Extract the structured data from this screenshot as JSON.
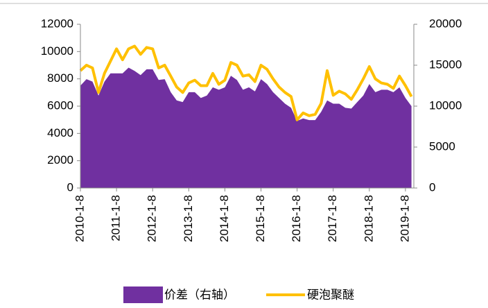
{
  "chart_data": {
    "type": "line",
    "categories": [
      "2010-1-8",
      null,
      null,
      null,
      null,
      null,
      "2011-1-8",
      null,
      null,
      null,
      null,
      null,
      "2012-1-8",
      null,
      null,
      null,
      null,
      null,
      "2013-1-8",
      null,
      null,
      null,
      null,
      null,
      "2014-1-8",
      null,
      null,
      null,
      null,
      null,
      "2015-1-8",
      null,
      null,
      null,
      null,
      null,
      "2016-1-8",
      null,
      null,
      null,
      null,
      null,
      "2017-1-8",
      null,
      null,
      null,
      null,
      null,
      "2018-1-8",
      null,
      null,
      null,
      null,
      null,
      "2019-1-8",
      null
    ],
    "series": [
      {
        "name": "价差（右轴）",
        "type": "area",
        "axis": "y2",
        "color": "#7030a0",
        "values": [
          12500,
          13300,
          13000,
          11300,
          13000,
          14000,
          14000,
          14000,
          14700,
          14300,
          13800,
          14500,
          14500,
          13200,
          13300,
          11700,
          10700,
          10500,
          11700,
          11700,
          11000,
          11300,
          12300,
          12000,
          12300,
          13700,
          13200,
          12000,
          12300,
          11800,
          13300,
          12700,
          11700,
          11000,
          10300,
          9800,
          8200,
          8500,
          8300,
          8300,
          9300,
          10700,
          10300,
          10300,
          9800,
          9700,
          10500,
          11300,
          12700,
          11700,
          12000,
          12000,
          11700,
          12300,
          11000,
          10000
        ]
      },
      {
        "name": "硬泡聚醚",
        "type": "line",
        "color": "#ffc000",
        "values": [
          8600,
          9000,
          8800,
          7000,
          8400,
          9300,
          10200,
          9400,
          10200,
          10400,
          9800,
          10300,
          10200,
          8800,
          9000,
          8200,
          7400,
          7000,
          7700,
          7900,
          7500,
          7500,
          8400,
          7600,
          7900,
          9200,
          9000,
          8200,
          8300,
          7800,
          9000,
          8700,
          8000,
          7400,
          7000,
          6700,
          5000,
          5500,
          5300,
          5400,
          6200,
          8600,
          6800,
          7100,
          6900,
          6500,
          7200,
          8000,
          8900,
          8000,
          7700,
          7600,
          7300,
          8200,
          7500,
          6700
        ]
      }
    ],
    "ylim": [
      0,
      12000
    ],
    "yticks": [
      0,
      2000,
      4000,
      6000,
      8000,
      10000,
      12000
    ],
    "y2lim": [
      0,
      20000
    ],
    "y2ticks": [
      0,
      5000,
      10000,
      15000,
      20000
    ]
  }
}
